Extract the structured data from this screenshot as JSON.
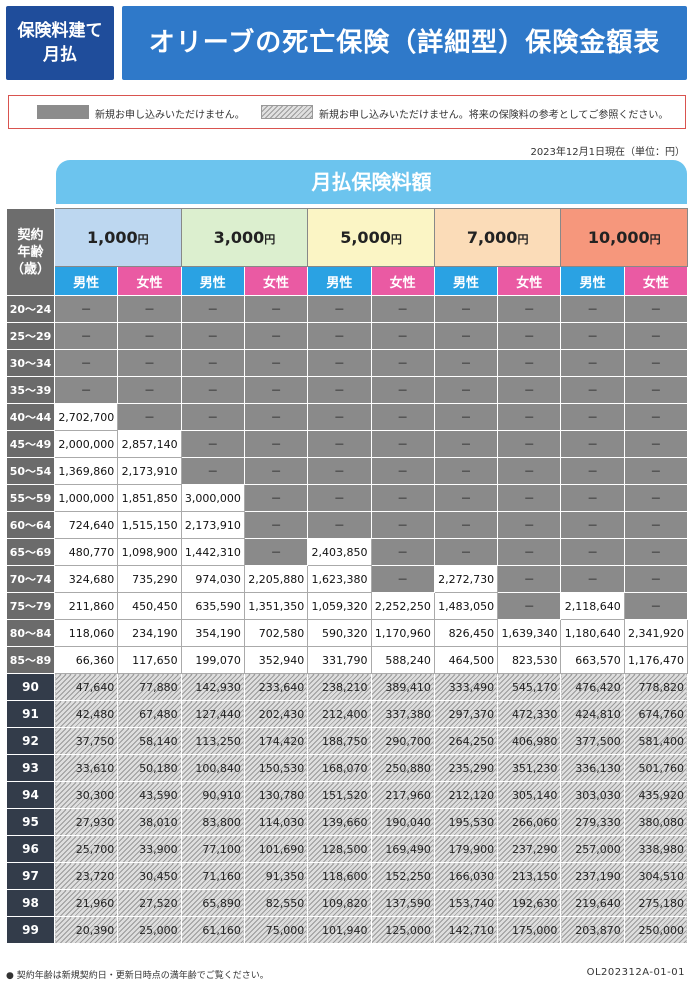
{
  "header": {
    "badge": "保険料建て月払",
    "badge_line1": "保険料建て",
    "badge_line2": "月払",
    "title": "オリーブの死亡保険（詳細型）保険金額表"
  },
  "legend": {
    "gray_text": "新規お申し込みいただけません。",
    "hatch_text": "新規お申し込みいただけません。将来の保険料の参考としてご参照ください。"
  },
  "date_note": "2023年12月1日現在（単位：円）",
  "table": {
    "title": "月払保険料額",
    "age_header": "契約年齢（歳）",
    "age_header_lines": [
      "契約",
      "年齢",
      "（歳）"
    ],
    "premium_unit": "円",
    "premiums": [
      "1,000",
      "3,000",
      "5,000",
      "7,000",
      "10,000"
    ],
    "male_label": "男性",
    "female_label": "女性",
    "rows": [
      {
        "age": "20～24",
        "style": "gray",
        "values": [
          "－",
          "－",
          "－",
          "－",
          "－",
          "－",
          "－",
          "－",
          "－",
          "－"
        ],
        "avail": 0
      },
      {
        "age": "25～29",
        "style": "gray",
        "values": [
          "－",
          "－",
          "－",
          "－",
          "－",
          "－",
          "－",
          "－",
          "－",
          "－"
        ],
        "avail": 0
      },
      {
        "age": "30～34",
        "style": "gray",
        "values": [
          "－",
          "－",
          "－",
          "－",
          "－",
          "－",
          "－",
          "－",
          "－",
          "－"
        ],
        "avail": 0
      },
      {
        "age": "35～39",
        "style": "gray",
        "values": [
          "－",
          "－",
          "－",
          "－",
          "－",
          "－",
          "－",
          "－",
          "－",
          "－"
        ],
        "avail": 0
      },
      {
        "age": "40～44",
        "style": "gray",
        "values": [
          "2,702,700",
          "－",
          "－",
          "－",
          "－",
          "－",
          "－",
          "－",
          "－",
          "－"
        ],
        "avail_mask": [
          1,
          0,
          0,
          0,
          0,
          0,
          0,
          0,
          0,
          0
        ]
      },
      {
        "age": "45～49",
        "style": "gray",
        "values": [
          "2,000,000",
          "2,857,140",
          "－",
          "－",
          "－",
          "－",
          "－",
          "－",
          "－",
          "－"
        ],
        "avail_mask": [
          1,
          1,
          0,
          0,
          0,
          0,
          0,
          0,
          0,
          0
        ]
      },
      {
        "age": "50～54",
        "style": "gray",
        "values": [
          "1,369,860",
          "2,173,910",
          "－",
          "－",
          "－",
          "－",
          "－",
          "－",
          "－",
          "－"
        ],
        "avail_mask": [
          1,
          1,
          0,
          0,
          0,
          0,
          0,
          0,
          0,
          0
        ]
      },
      {
        "age": "55～59",
        "style": "gray",
        "values": [
          "1,000,000",
          "1,851,850",
          "3,000,000",
          "－",
          "－",
          "－",
          "－",
          "－",
          "－",
          "－"
        ],
        "avail_mask": [
          1,
          1,
          1,
          0,
          0,
          0,
          0,
          0,
          0,
          0
        ]
      },
      {
        "age": "60～64",
        "style": "gray",
        "values": [
          "724,640",
          "1,515,150",
          "2,173,910",
          "－",
          "－",
          "－",
          "－",
          "－",
          "－",
          "－"
        ],
        "avail_mask": [
          1,
          1,
          1,
          0,
          0,
          0,
          0,
          0,
          0,
          0
        ]
      },
      {
        "age": "65～69",
        "style": "gray",
        "values": [
          "480,770",
          "1,098,900",
          "1,442,310",
          "－",
          "2,403,850",
          "－",
          "－",
          "－",
          "－",
          "－"
        ],
        "avail_mask": [
          1,
          1,
          1,
          0,
          1,
          0,
          0,
          0,
          0,
          0
        ]
      },
      {
        "age": "70～74",
        "style": "gray",
        "values": [
          "324,680",
          "735,290",
          "974,030",
          "2,205,880",
          "1,623,380",
          "－",
          "2,272,730",
          "－",
          "－",
          "－"
        ],
        "avail_mask": [
          1,
          1,
          1,
          1,
          1,
          0,
          1,
          0,
          0,
          0
        ]
      },
      {
        "age": "75～79",
        "style": "gray",
        "values": [
          "211,860",
          "450,450",
          "635,590",
          "1,351,350",
          "1,059,320",
          "2,252,250",
          "1,483,050",
          "－",
          "2,118,640",
          "－"
        ],
        "avail_mask": [
          1,
          1,
          1,
          1,
          1,
          1,
          1,
          0,
          1,
          0
        ]
      },
      {
        "age": "80～84",
        "style": "gray",
        "values": [
          "118,060",
          "234,190",
          "354,190",
          "702,580",
          "590,320",
          "1,170,960",
          "826,450",
          "1,639,340",
          "1,180,640",
          "2,341,920"
        ],
        "avail_mask": [
          1,
          1,
          1,
          1,
          1,
          1,
          1,
          1,
          1,
          1
        ]
      },
      {
        "age": "85～89",
        "style": "gray",
        "values": [
          "66,360",
          "117,650",
          "199,070",
          "352,940",
          "331,790",
          "588,240",
          "464,500",
          "823,530",
          "663,570",
          "1,176,470"
        ],
        "avail_mask": [
          1,
          1,
          1,
          1,
          1,
          1,
          1,
          1,
          1,
          1
        ]
      },
      {
        "age": "90",
        "style": "hatch",
        "values": [
          "47,640",
          "77,880",
          "142,930",
          "233,640",
          "238,210",
          "389,410",
          "333,490",
          "545,170",
          "476,420",
          "778,820"
        ]
      },
      {
        "age": "91",
        "style": "hatch",
        "values": [
          "42,480",
          "67,480",
          "127,440",
          "202,430",
          "212,400",
          "337,380",
          "297,370",
          "472,330",
          "424,810",
          "674,760"
        ]
      },
      {
        "age": "92",
        "style": "hatch",
        "values": [
          "37,750",
          "58,140",
          "113,250",
          "174,420",
          "188,750",
          "290,700",
          "264,250",
          "406,980",
          "377,500",
          "581,400"
        ]
      },
      {
        "age": "93",
        "style": "hatch",
        "values": [
          "33,610",
          "50,180",
          "100,840",
          "150,530",
          "168,070",
          "250,880",
          "235,290",
          "351,230",
          "336,130",
          "501,760"
        ]
      },
      {
        "age": "94",
        "style": "hatch",
        "values": [
          "30,300",
          "43,590",
          "90,910",
          "130,780",
          "151,520",
          "217,960",
          "212,120",
          "305,140",
          "303,030",
          "435,920"
        ]
      },
      {
        "age": "95",
        "style": "hatch",
        "values": [
          "27,930",
          "38,010",
          "83,800",
          "114,030",
          "139,660",
          "190,040",
          "195,530",
          "266,060",
          "279,330",
          "380,080"
        ]
      },
      {
        "age": "96",
        "style": "hatch",
        "values": [
          "25,700",
          "33,900",
          "77,100",
          "101,690",
          "128,500",
          "169,490",
          "179,900",
          "237,290",
          "257,000",
          "338,980"
        ]
      },
      {
        "age": "97",
        "style": "hatch",
        "values": [
          "23,720",
          "30,450",
          "71,160",
          "91,350",
          "118,600",
          "152,250",
          "166,030",
          "213,150",
          "237,190",
          "304,510"
        ]
      },
      {
        "age": "98",
        "style": "hatch",
        "values": [
          "21,960",
          "27,520",
          "65,890",
          "82,550",
          "109,820",
          "137,590",
          "153,740",
          "192,630",
          "219,640",
          "275,180"
        ]
      },
      {
        "age": "99",
        "style": "hatch",
        "values": [
          "20,390",
          "25,000",
          "61,160",
          "75,000",
          "101,940",
          "125,000",
          "142,710",
          "175,000",
          "203,870",
          "250,000"
        ]
      }
    ]
  },
  "footnote": "● 契約年齢は新規契約日・更新日時点の満年齢でご覧ください。",
  "doc_code": "OL202312A-01-01",
  "colors": {
    "badge": "#1f4d9b",
    "title": "#2f79c9",
    "table_title": "#6cc4ee",
    "male": "#2aa2e3",
    "female": "#ea5aa3",
    "unavailable": "#8a8a8a"
  }
}
